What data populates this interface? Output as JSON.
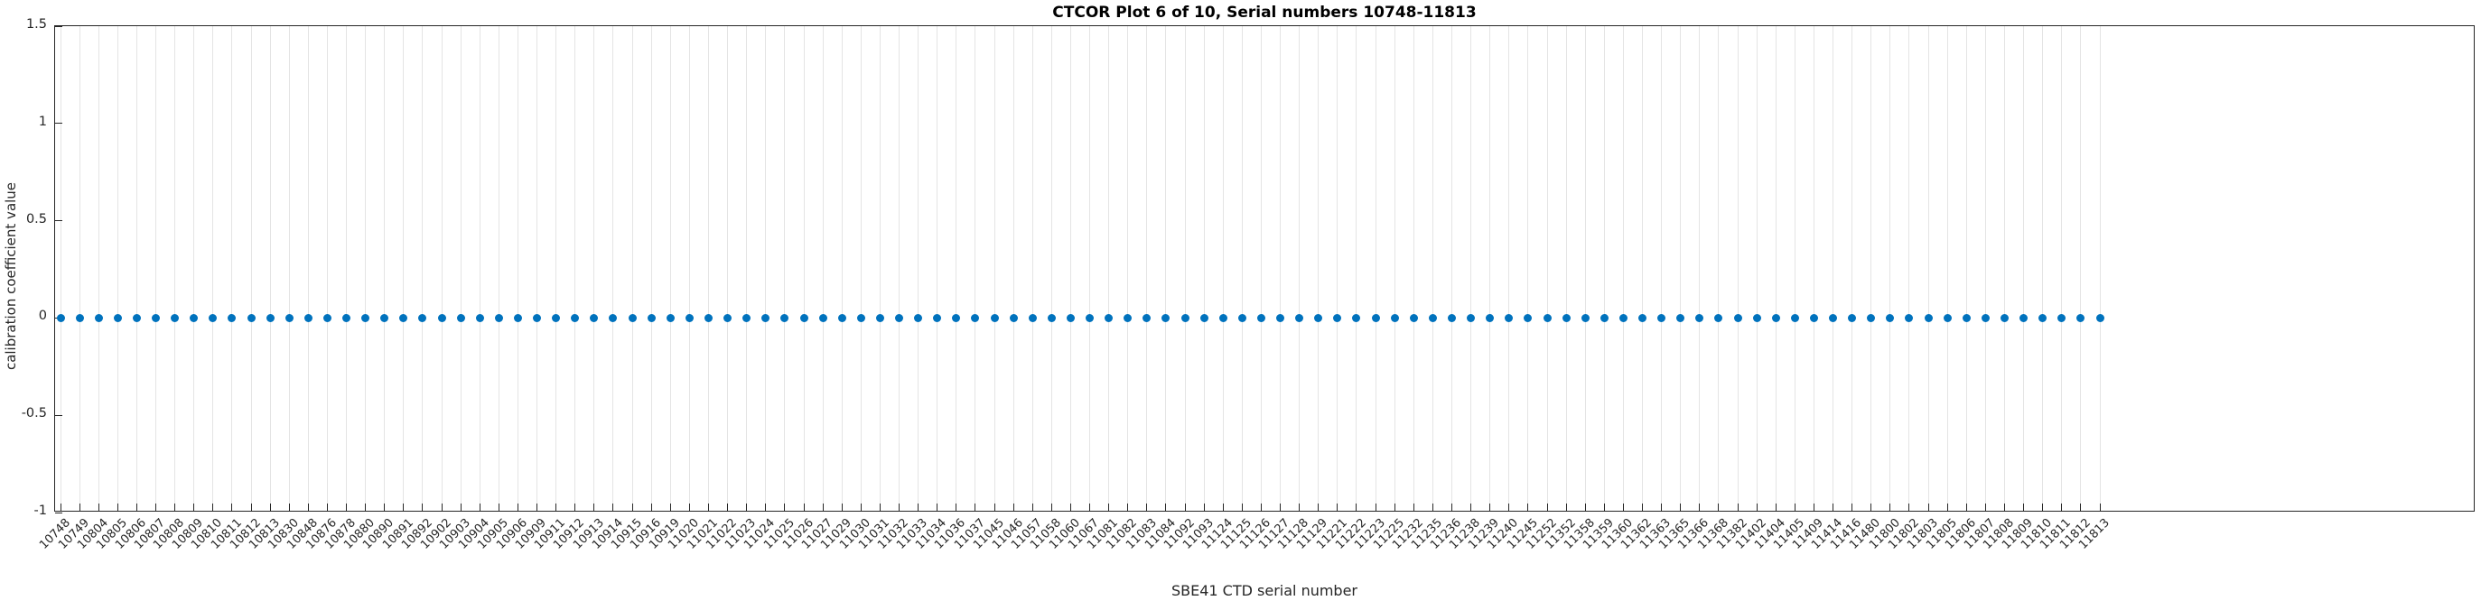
{
  "title": "CTCOR Plot 6 of 10, Serial numbers 10748-11813",
  "x_axis_label": "SBE41 CTD serial number",
  "y_axis_label": "calibration coefficient value",
  "colors": {
    "marker": "#0072BD",
    "axis": "#262626",
    "grid": "#e4e4e4",
    "background": "#ffffff"
  },
  "chart_data": {
    "type": "scatter",
    "title": "CTCOR Plot 6 of 10, Serial numbers 10748-11813",
    "xlabel": "SBE41 CTD serial number",
    "ylabel": "calibration coefficient value",
    "ylim": [
      -1,
      1.5
    ],
    "ytick_labels": [
      "1.5",
      "1",
      "0.5",
      "0",
      "-0.5",
      "-1"
    ],
    "ytick_values": [
      1.5,
      1,
      0.5,
      0,
      -0.5,
      -1
    ],
    "grid": "vertical-only",
    "legend": "none",
    "marker": "filled-circle",
    "marker_color": "#0072BD",
    "xtick_angle_deg": 45,
    "categories": [
      "10748",
      "10749",
      "10804",
      "10805",
      "10806",
      "10807",
      "10808",
      "10809",
      "10810",
      "10811",
      "10812",
      "10813",
      "10830",
      "10848",
      "10876",
      "10878",
      "10880",
      "10890",
      "10891",
      "10892",
      "10902",
      "10903",
      "10904",
      "10905",
      "10906",
      "10909",
      "10911",
      "10912",
      "10913",
      "10914",
      "10915",
      "10916",
      "10919",
      "11020",
      "11021",
      "11022",
      "11023",
      "11024",
      "11025",
      "11026",
      "11027",
      "11029",
      "11030",
      "11031",
      "11032",
      "11033",
      "11034",
      "11036",
      "11037",
      "11045",
      "11046",
      "11057",
      "11058",
      "11060",
      "11067",
      "11081",
      "11082",
      "11083",
      "11084",
      "11092",
      "11093",
      "11124",
      "11125",
      "11126",
      "11127",
      "11128",
      "11129",
      "11221",
      "11222",
      "11223",
      "11225",
      "11232",
      "11235",
      "11236",
      "11238",
      "11239",
      "11240",
      "11245",
      "11252",
      "11352",
      "11358",
      "11359",
      "11360",
      "11362",
      "11363",
      "11365",
      "11366",
      "11368",
      "11382",
      "11402",
      "11404",
      "11405",
      "11409",
      "11414",
      "11416",
      "11480",
      "11800",
      "11802",
      "11803",
      "11805",
      "11806",
      "11807",
      "11808",
      "11809",
      "11810",
      "11811",
      "11812",
      "11813"
    ],
    "values": [
      0,
      0,
      0,
      0,
      0,
      0,
      0,
      0,
      0,
      0,
      0,
      0,
      0,
      0,
      0,
      0,
      0,
      0,
      0,
      0,
      0,
      0,
      0,
      0,
      0,
      0,
      0,
      0,
      0,
      0,
      0,
      0,
      0,
      0,
      0,
      0,
      0,
      0,
      0,
      0,
      0,
      0,
      0,
      0,
      0,
      0,
      0,
      0,
      0,
      0,
      0,
      0,
      0,
      0,
      0,
      0,
      0,
      0,
      0,
      0,
      0,
      0,
      0,
      0,
      0,
      0,
      0,
      0,
      0,
      0,
      0,
      0,
      0,
      0,
      0,
      0,
      0,
      0,
      0,
      0,
      0,
      0,
      0,
      0,
      0,
      0,
      0,
      0,
      0,
      0,
      0,
      0,
      0,
      0,
      0,
      0,
      0,
      0,
      0,
      0,
      0,
      0,
      0,
      0,
      0,
      0,
      0,
      0
    ]
  }
}
